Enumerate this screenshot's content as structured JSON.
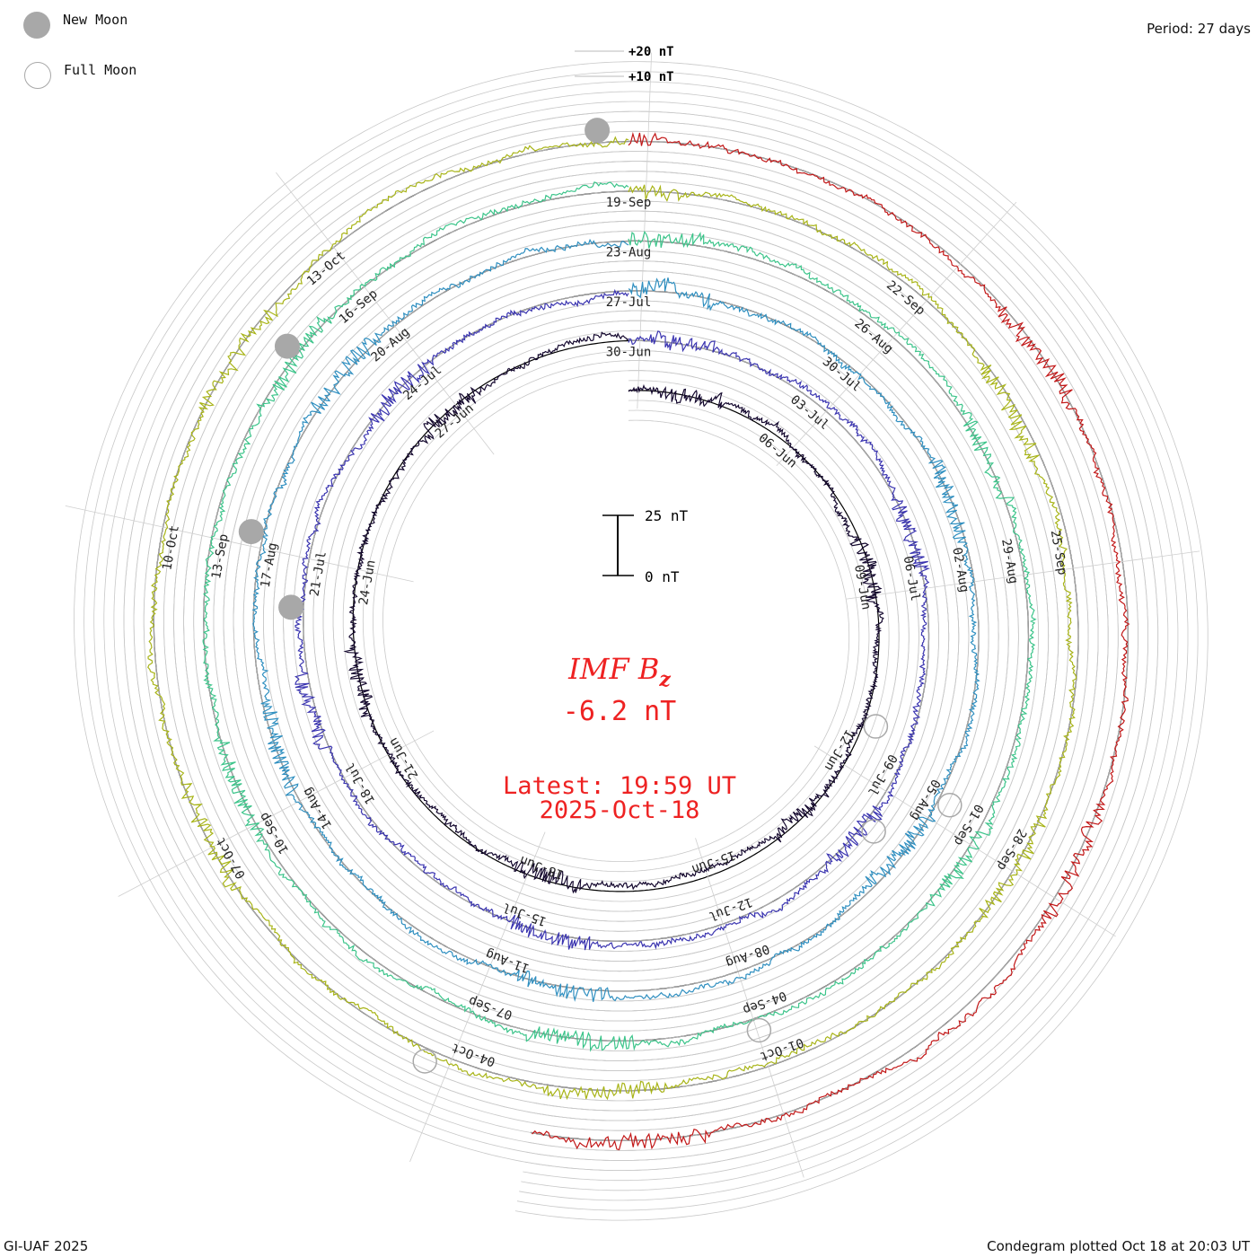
{
  "legend": {
    "new_moon_label": "New Moon",
    "full_moon_label": "Full Moon",
    "new_moon_color": "#a8a8a8",
    "full_moon_color": "#a8a8a8"
  },
  "period_label": "Period: 27 days",
  "footer_left": "GI-UAF 2025",
  "footer_right": "Condegram plotted Oct 18 at 20:03 UT",
  "center": {
    "title_main": "IMF B",
    "title_sub": "z",
    "current_value": "-6.2 nT",
    "latest_time": "Latest: 19:59 UT",
    "latest_date": "2025-Oct-18",
    "text_color": "#ee2222"
  },
  "chart_data": {
    "type": "line",
    "subtype": "condegram-spiral",
    "title": "IMF B",
    "title_subscript": "z",
    "units": "nT",
    "period_days": 27,
    "scale_bar": {
      "top_label": "25 nT",
      "bottom_label": "0 nT",
      "top_value": 25,
      "bottom_value": 0
    },
    "reference_labels": [
      "+20 nT",
      "+10 nT"
    ],
    "reference_values": [
      20,
      10
    ],
    "grid": true,
    "rotations": [
      {
        "index": 1,
        "color": "#14082e",
        "start_date": "03-Jun",
        "date_labels": [
          "06-Jun",
          "09-Jun",
          "12-Jun",
          "15-Jun",
          "18-Jun",
          "21-Jun",
          "24-Jun",
          "27-Jun",
          "30-Jun"
        ],
        "new_moon_dates": [],
        "full_moon_dates": [
          "11-Jun"
        ]
      },
      {
        "index": 2,
        "color": "#3b35b0",
        "start_date": "30-Jun",
        "date_labels": [
          "03-Jul",
          "06-Jul",
          "09-Jul",
          "12-Jul",
          "15-Jul",
          "18-Jul",
          "21-Jul",
          "24-Jul",
          "27-Jul"
        ],
        "new_moon_dates": [
          "25-Jun",
          "24-Jul"
        ],
        "full_moon_dates": [
          "10-Jul"
        ]
      },
      {
        "index": 3,
        "color": "#2f8fc0",
        "start_date": "27-Jul",
        "date_labels": [
          "30-Jul",
          "02-Aug",
          "05-Aug",
          "08-Aug",
          "11-Aug",
          "14-Aug",
          "17-Aug",
          "20-Aug",
          "23-Aug"
        ],
        "new_moon_dates": [
          "23-Aug"
        ],
        "full_moon_dates": [
          "09-Aug"
        ]
      },
      {
        "index": 4,
        "color": "#3cc48a",
        "start_date": "23-Aug",
        "date_labels": [
          "26-Aug",
          "29-Aug",
          "01-Sep",
          "04-Sep",
          "07-Sep",
          "10-Sep",
          "13-Sep",
          "16-Sep",
          "19-Sep"
        ],
        "new_moon_dates": [],
        "full_moon_dates": [
          "07-Sep"
        ]
      },
      {
        "index": 5,
        "color": "#a8b418",
        "start_date": "19-Sep",
        "date_labels": [
          "22-Sep",
          "25-Sep",
          "28-Sep",
          "01-Oct",
          "04-Oct",
          "07-Oct",
          "10-Oct",
          "13-Oct"
        ],
        "new_moon_dates": [
          "21-Sep"
        ],
        "full_moon_dates": [
          "07-Oct"
        ]
      },
      {
        "index": 6,
        "color": "#c21818",
        "start_date": "16-Oct",
        "date_labels": [],
        "new_moon_dates": [],
        "full_moon_dates": []
      }
    ]
  }
}
